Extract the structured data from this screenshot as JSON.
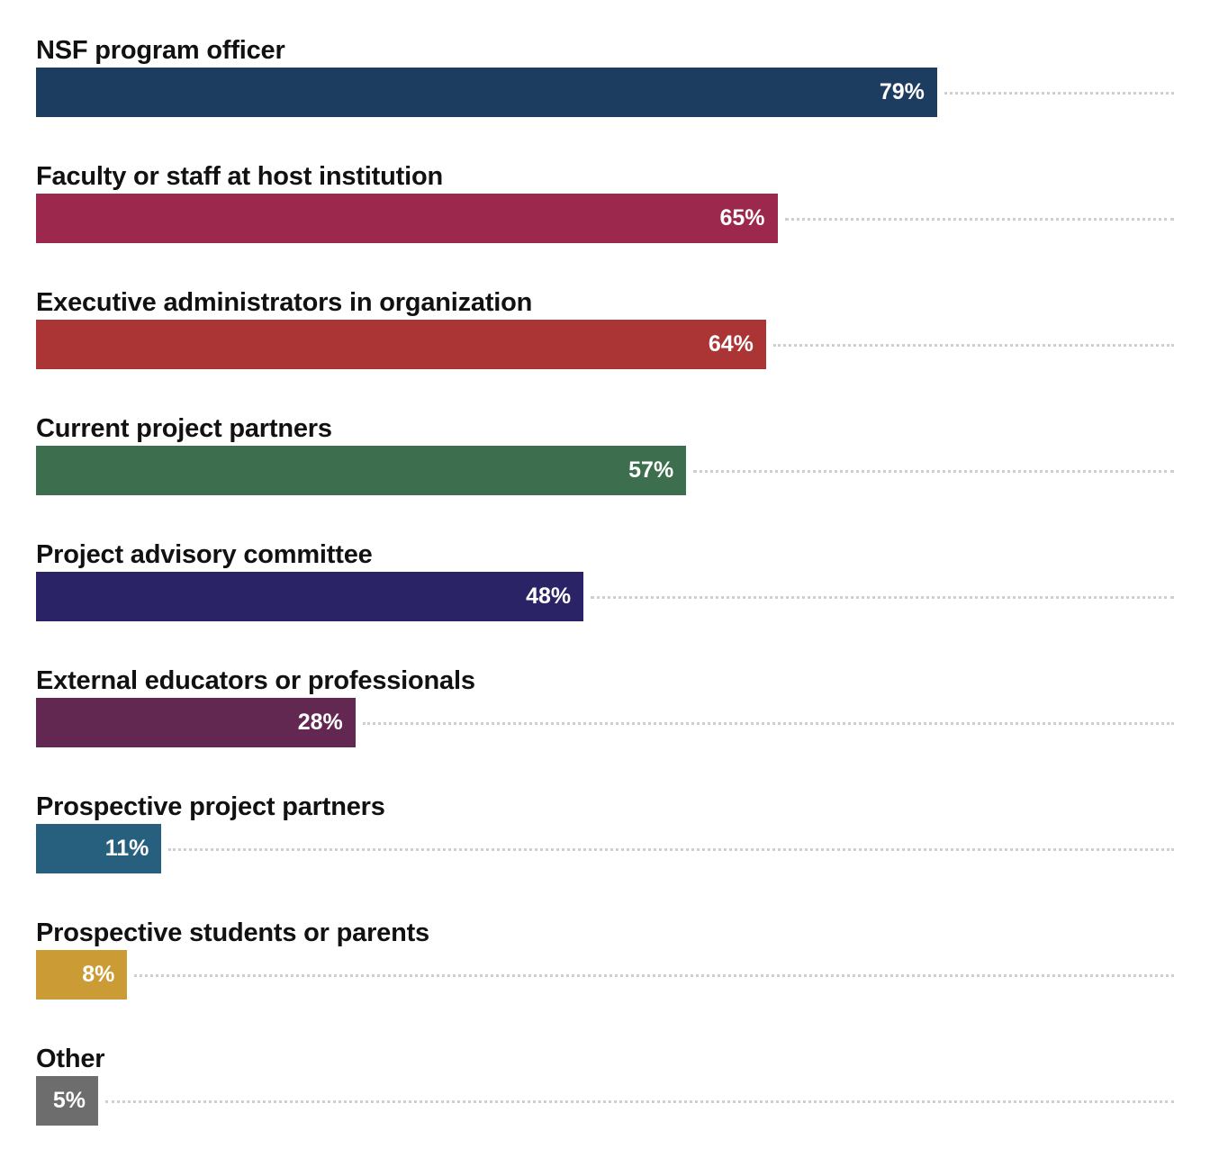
{
  "chart_data": {
    "type": "bar",
    "orientation": "horizontal",
    "title": "",
    "xlabel": "",
    "ylabel": "",
    "xlim": [
      0,
      100
    ],
    "grid": false,
    "value_suffix": "%",
    "categories": [
      "NSF program officer",
      "Faculty or staff at host institution",
      "Executive administrators in organization",
      "Current project partners",
      "Project advisory committee",
      "External educators or professionals",
      "Prospective project partners",
      "Prospective students or parents",
      "Other"
    ],
    "values": [
      79,
      65,
      64,
      57,
      48,
      28,
      11,
      8,
      5
    ],
    "labels": [
      "79%",
      "65%",
      "64%",
      "57%",
      "48%",
      "28%",
      "11%",
      "8%",
      "5%"
    ],
    "colors": [
      "#1d3d60",
      "#9c284d",
      "#ab3535",
      "#3d6e4e",
      "#2a2466",
      "#622852",
      "#27607e",
      "#cb9b35",
      "#6d6d6d"
    ]
  }
}
